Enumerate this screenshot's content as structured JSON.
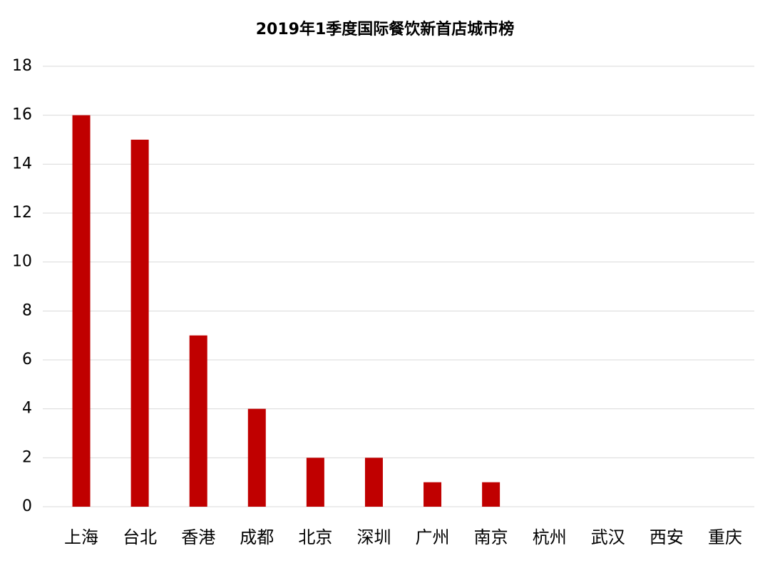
{
  "chart_data": {
    "type": "bar",
    "title": "2019年1季度国际餐饮新首店城市榜",
    "categories": [
      "上海",
      "台北",
      "香港",
      "成都",
      "北京",
      "深圳",
      "广州",
      "南京",
      "杭州",
      "武汉",
      "西安",
      "重庆"
    ],
    "values": [
      16,
      15,
      7,
      4,
      2,
      2,
      1,
      1,
      0,
      0,
      0,
      0
    ],
    "color": "#c00000",
    "ylim": [
      0,
      18
    ],
    "yticks": [
      0,
      2,
      4,
      6,
      8,
      10,
      12,
      14,
      16,
      18
    ],
    "grid": true
  }
}
